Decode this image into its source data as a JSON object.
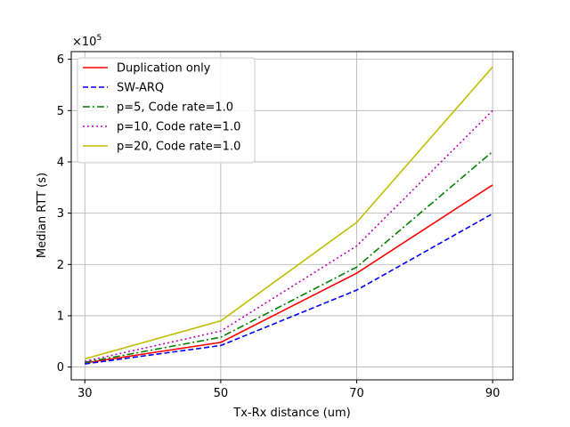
{
  "chart_data": {
    "type": "line",
    "title": "",
    "xlabel": "Tx-Rx distance (um)",
    "ylabel": "Median RTT (s)",
    "y_scale_label": "×10",
    "y_scale_exponent": "5",
    "x": [
      30,
      50,
      70,
      90
    ],
    "x_tick_labels": [
      "30",
      "50",
      "70",
      "90"
    ],
    "y_tick_labels": [
      "0",
      "1",
      "2",
      "3",
      "4",
      "5",
      "6"
    ],
    "xlim": [
      28,
      93
    ],
    "ylim": [
      -25000,
      615000
    ],
    "grid": true,
    "legend_position": "top-left",
    "series": [
      {
        "name": "Duplication only",
        "values": [
          8000,
          48000,
          183000,
          355000
        ],
        "color": "#ff0000",
        "style": "solid"
      },
      {
        "name": "SW-ARQ",
        "values": [
          6000,
          42000,
          150000,
          299000
        ],
        "color": "#0000ff",
        "style": "dashed"
      },
      {
        "name": "p=5, Code rate=1.0",
        "values": [
          9000,
          58000,
          195000,
          420000
        ],
        "color": "#008000",
        "style": "dashdot"
      },
      {
        "name": "p=10, Code rate=1.0",
        "values": [
          11000,
          70000,
          236000,
          500000
        ],
        "color": "#bf00bf",
        "style": "dotted"
      },
      {
        "name": "p=20, Code rate=1.0",
        "values": [
          16000,
          90000,
          282000,
          585000
        ],
        "color": "#bfbf00",
        "style": "solid"
      }
    ]
  }
}
